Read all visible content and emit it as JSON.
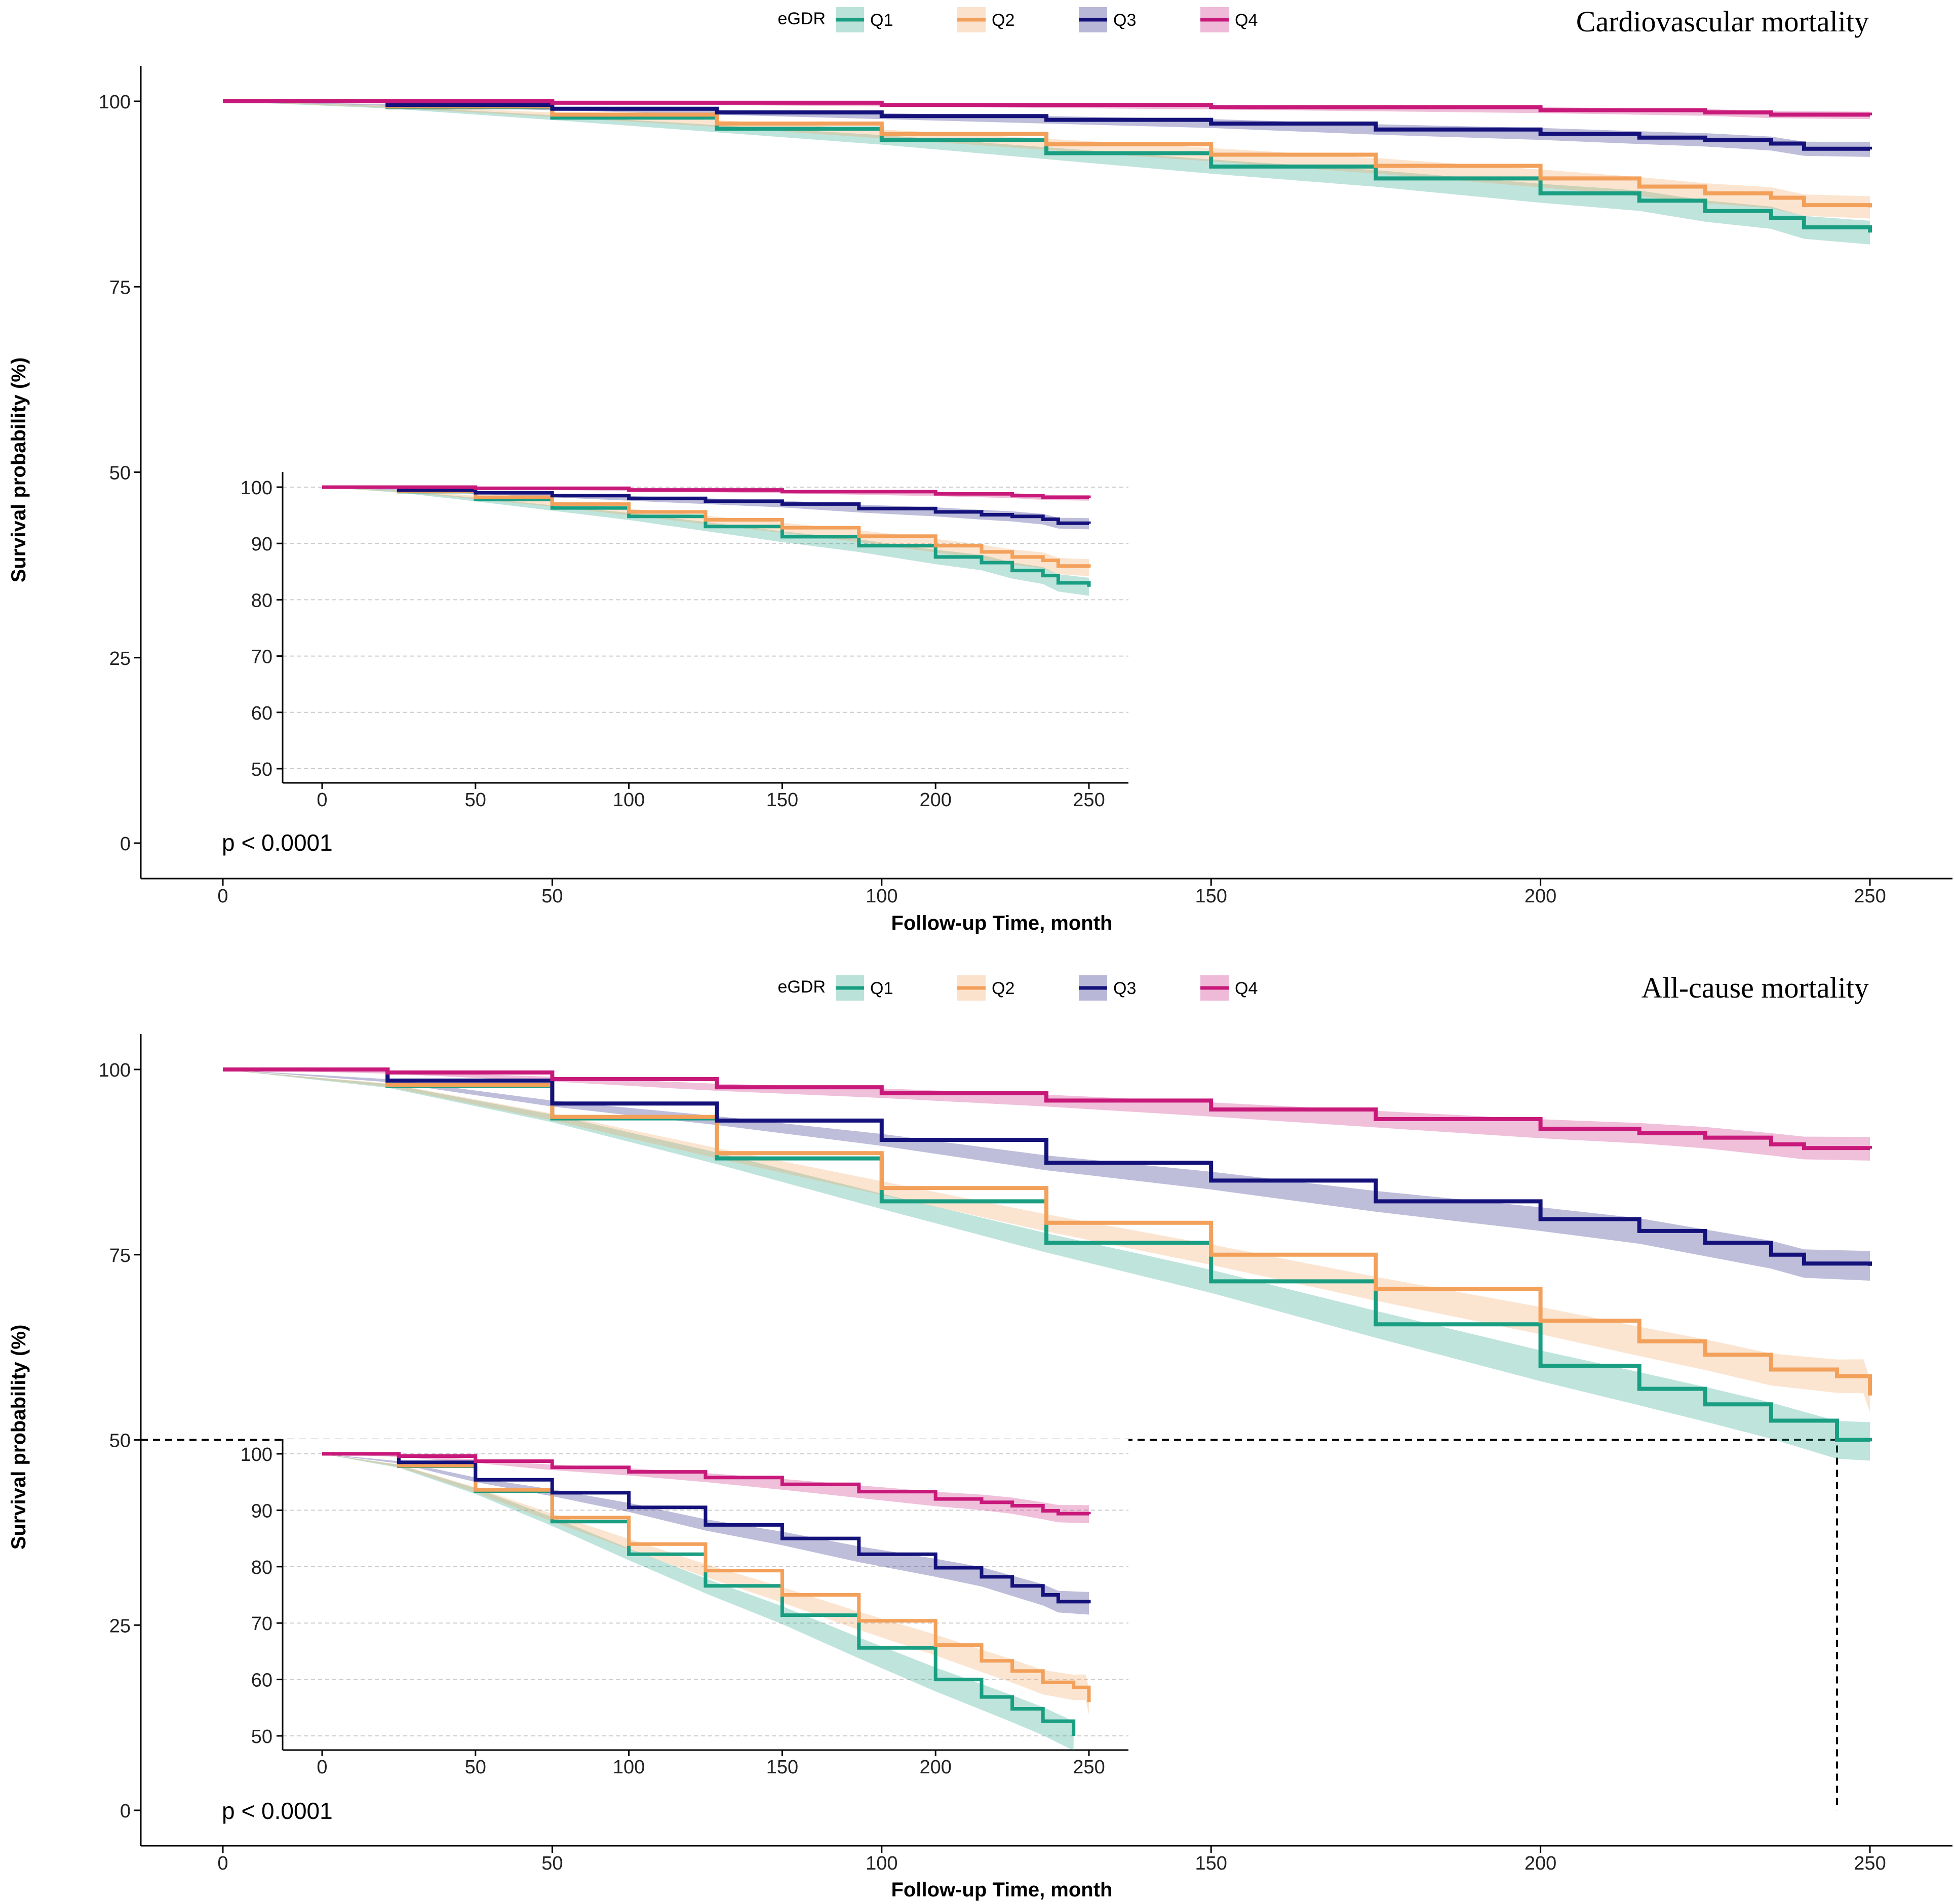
{
  "colors": {
    "Q1": "#1a9e82",
    "Q2": "#f2a05a",
    "Q3": "#14127a",
    "Q4": "#c8197a",
    "axis": "#000000",
    "grid": "#cccccc"
  },
  "panels": [
    {
      "chart_data": {
        "type": "line",
        "title": "Cardiovascular mortality",
        "xlabel": "Follow-up Time, month",
        "ylabel": "Survival probability (%)",
        "xlim": [
          0,
          250
        ],
        "ylim": [
          0,
          100
        ],
        "xticks": [
          "0",
          "50",
          "100",
          "150",
          "200",
          "250"
        ],
        "yticks": [
          "0",
          "25",
          "50",
          "75",
          "100"
        ],
        "legend": {
          "title": "eGDR",
          "labels": [
            "Q1",
            "Q2",
            "Q3",
            "Q4"
          ],
          "placement": "top-center"
        },
        "annotation": "p < 0.0001",
        "series": [
          {
            "name": "Q1",
            "x": [
              0,
              25,
              50,
              75,
              100,
              125,
              150,
              175,
              200,
              215,
              225,
              235,
              240,
              250
            ],
            "y": [
              100,
              99.2,
              97.8,
              96.3,
              94.8,
              93,
              91.2,
              89.6,
              87.6,
              86.6,
              85.2,
              84.3,
              83,
              82.3
            ],
            "ci": 1.6
          },
          {
            "name": "Q2",
            "x": [
              0,
              25,
              50,
              75,
              100,
              125,
              150,
              175,
              200,
              215,
              225,
              235,
              240,
              250
            ],
            "y": [
              100,
              99.3,
              98.2,
              97,
              95.6,
              94.2,
              92.8,
              91.3,
              89.6,
              88.5,
              87.6,
              87,
              86,
              85.7
            ],
            "ci": 1.5
          },
          {
            "name": "Q3",
            "x": [
              0,
              25,
              50,
              75,
              100,
              125,
              150,
              175,
              200,
              215,
              225,
              235,
              240,
              250
            ],
            "y": [
              100,
              99.5,
              99,
              98.5,
              98,
              97.5,
              97,
              96.2,
              95.6,
              95.1,
              94.8,
              94.3,
              93.6,
              93.5
            ],
            "ci": 1.0
          },
          {
            "name": "Q4",
            "x": [
              0,
              50,
              100,
              150,
              200,
              225,
              235,
              250
            ],
            "y": [
              100,
              99.8,
              99.5,
              99.2,
              98.8,
              98.5,
              98.2,
              98.1
            ],
            "ci": 0.5
          }
        ],
        "inset": {
          "xlim": [
            0,
            250
          ],
          "ylim": [
            50,
            100
          ],
          "xticks": [
            "0",
            "50",
            "100",
            "150",
            "200",
            "250"
          ],
          "yticks": [
            "50",
            "60",
            "70",
            "80",
            "90",
            "100"
          ]
        }
      }
    },
    {
      "chart_data": {
        "type": "line",
        "title": "All-cause mortality",
        "xlabel": "Follow-up Time, month",
        "ylabel": "Survival probability (%)",
        "xlim": [
          0,
          250
        ],
        "ylim": [
          0,
          100
        ],
        "xticks": [
          "0",
          "50",
          "100",
          "150",
          "200",
          "250"
        ],
        "yticks": [
          "0",
          "25",
          "50",
          "75",
          "100"
        ],
        "legend": {
          "title": "eGDR",
          "labels": [
            "Q1",
            "Q2",
            "Q3",
            "Q4"
          ],
          "placement": "top-center"
        },
        "annotation": "p < 0.0001",
        "median_line": {
          "y": 50,
          "x": 245
        },
        "series": [
          {
            "name": "Q1",
            "x": [
              0,
              25,
              50,
              75,
              100,
              125,
              150,
              175,
              200,
              215,
              225,
              235,
              245,
              250
            ],
            "y": [
              100,
              97.8,
              93.4,
              88,
              82.2,
              76.6,
              71.4,
              65.6,
              60,
              56.9,
              54.8,
              52.6,
              50,
              49.8
            ],
            "ci": 2.6
          },
          {
            "name": "Q2",
            "x": [
              0,
              25,
              50,
              75,
              100,
              125,
              150,
              175,
              200,
              215,
              225,
              235,
              245,
              249,
              250
            ],
            "y": [
              100,
              97.9,
              93.6,
              88.7,
              84,
              79.3,
              75,
              70.4,
              66.1,
              63.3,
              61.5,
              59.5,
              58.6,
              58.6,
              56
            ],
            "ci": 2.3
          },
          {
            "name": "Q3",
            "x": [
              0,
              25,
              50,
              75,
              100,
              125,
              150,
              175,
              200,
              215,
              225,
              235,
              240,
              250
            ],
            "y": [
              100,
              98.5,
              95.4,
              93.1,
              90.5,
              87.4,
              85,
              82.2,
              79.8,
              78.2,
              76.6,
              75,
              73.8,
              73.5
            ],
            "ci": 2.0
          },
          {
            "name": "Q4",
            "x": [
              0,
              25,
              50,
              75,
              100,
              125,
              150,
              175,
              200,
              215,
              225,
              235,
              240,
              250
            ],
            "y": [
              100,
              99.6,
              98.7,
              97.6,
              96.8,
              95.8,
              94.6,
              93.3,
              92,
              91.4,
              90.8,
              89.9,
              89.4,
              89.3
            ],
            "ci": 1.6
          }
        ],
        "inset": {
          "xlim": [
            0,
            250
          ],
          "ylim": [
            50,
            100
          ],
          "xticks": [
            "0",
            "50",
            "100",
            "150",
            "200",
            "250"
          ],
          "yticks": [
            "50",
            "60",
            "70",
            "80",
            "90",
            "100"
          ]
        }
      }
    }
  ]
}
